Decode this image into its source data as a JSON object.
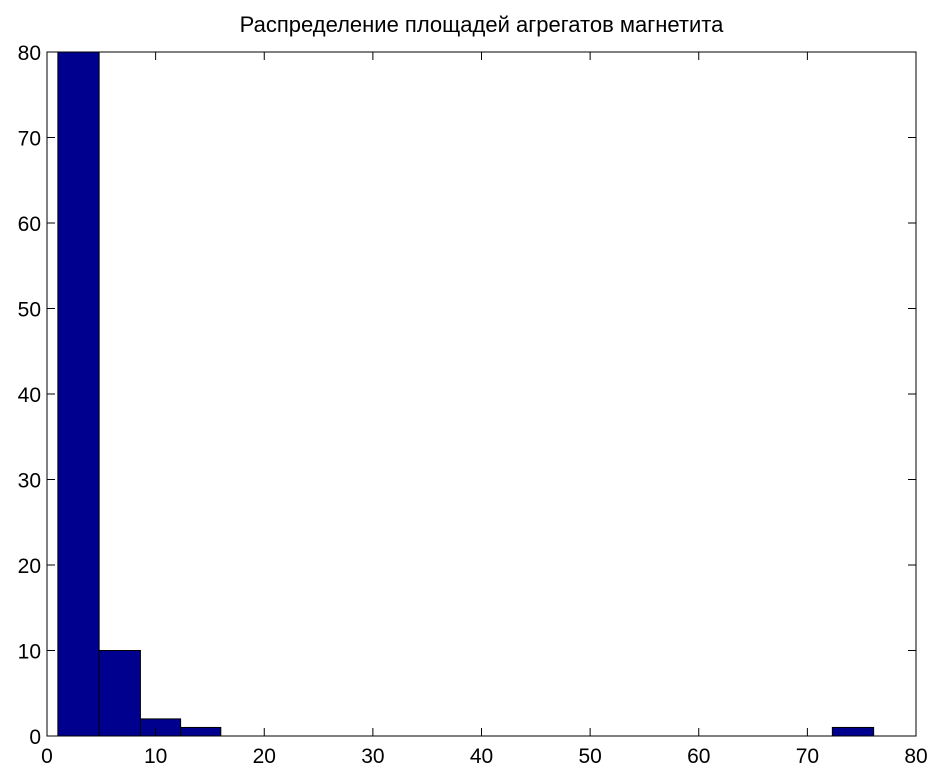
{
  "chart_data": {
    "type": "bar",
    "title": "Распределение площадей агрегатов магнетита",
    "xlabel": "",
    "ylabel": "",
    "xlim": [
      0,
      80
    ],
    "ylim": [
      0,
      80
    ],
    "xticks": [
      "0",
      "10",
      "20",
      "30",
      "40",
      "50",
      "60",
      "70",
      "80"
    ],
    "yticks": [
      "0",
      "10",
      "20",
      "30",
      "40",
      "50",
      "60",
      "70",
      "80"
    ],
    "bins": [
      {
        "x0": 1.0,
        "x1": 4.8,
        "value": 80
      },
      {
        "x0": 4.8,
        "x1": 8.6,
        "value": 10
      },
      {
        "x0": 8.6,
        "x1": 12.3,
        "value": 2
      },
      {
        "x0": 12.3,
        "x1": 16.0,
        "value": 1
      },
      {
        "x0": 72.3,
        "x1": 76.1,
        "value": 1
      }
    ],
    "bar_color": "#00008F",
    "grid": false
  }
}
